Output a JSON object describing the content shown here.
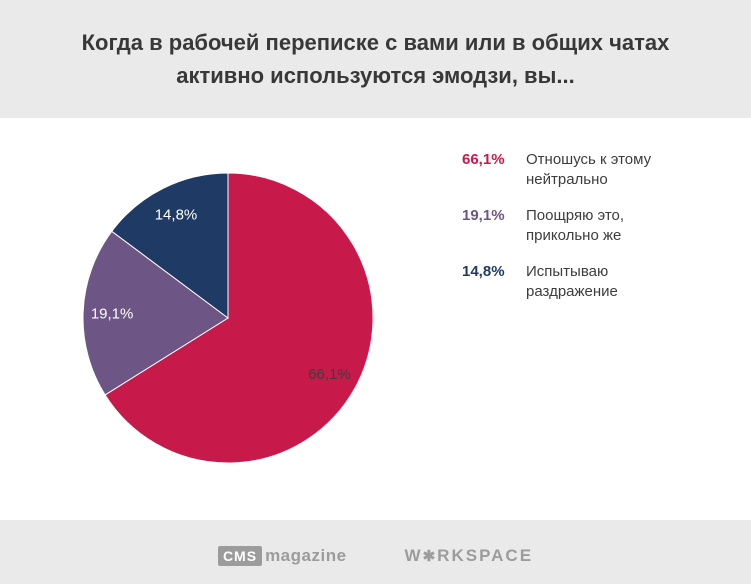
{
  "title": {
    "line1": "Когда в рабочей переписке с вами или в общих чатах",
    "line2": "активно используются эмодзи, вы..."
  },
  "chart_data": {
    "type": "pie",
    "title": "Когда в рабочей переписке с вами или в общих чатах активно используются эмодзи, вы...",
    "labels": [
      "Отношусь к этому нейтрально",
      "Поощряю это, прикольно же",
      "Испытываю раздражение"
    ],
    "values": [
      66.1,
      19.1,
      14.8
    ],
    "value_labels": [
      "66,1%",
      "19,1%",
      "14,8%"
    ],
    "colors": [
      "#c7194a",
      "#6d5585",
      "#1f3a64"
    ],
    "label_colors": [
      "#3d3d3d",
      "#ffffff",
      "#ffffff"
    ],
    "start_angle_deg": 0,
    "direction": "clockwise",
    "legend_position": "right",
    "grid": false
  },
  "legend": {
    "items": [
      {
        "percent": "66,1%",
        "text": "Отношусь к этому нейтрально",
        "color": "#c7194a"
      },
      {
        "percent": "19,1%",
        "text": "Поощряю это, прикольно же",
        "color": "#6d5585"
      },
      {
        "percent": "14,8%",
        "text": "Испытываю раздражение",
        "color": "#1f3a64"
      }
    ]
  },
  "footer": {
    "cms_box": "CMS",
    "cms_text": "magazine",
    "workspace_pre": "W",
    "workspace_star": "✱",
    "workspace_post": "RKSPACE"
  }
}
